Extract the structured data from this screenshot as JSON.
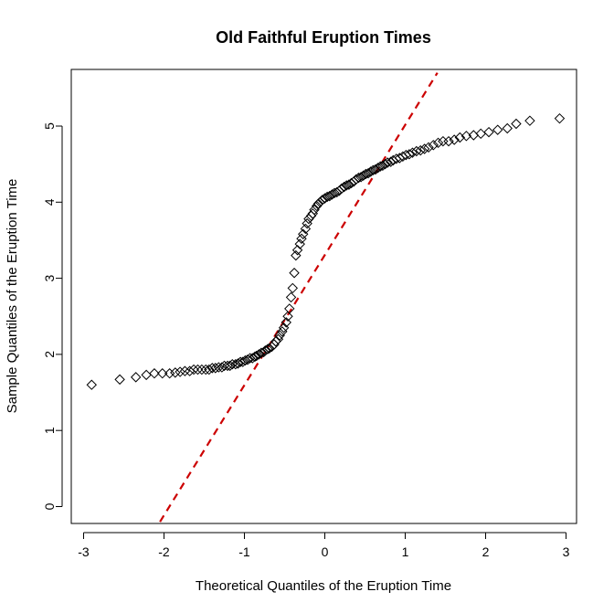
{
  "chart_data": {
    "type": "scatter",
    "title": "Old Faithful Eruption Times",
    "xlabel": "Theoretical Quantiles of the Eruption Time",
    "ylabel": "Sample Quantiles of the Eruption Time",
    "xlim": [
      -3,
      3
    ],
    "ylim": [
      0,
      5.5
    ],
    "xticks": [
      "-3",
      "-2",
      "-1",
      "0",
      "1",
      "2",
      "3"
    ],
    "yticks": [
      "0",
      "1",
      "2",
      "3",
      "4",
      "5"
    ],
    "grid": false,
    "legend": "none",
    "marker": "diamond",
    "marker_color": "#000000",
    "line_color": "#cc0000",
    "line_style": "dashed",
    "reference_line": {
      "points": [
        [
          -2.05,
          -0.2
        ],
        [
          1.4,
          5.7
        ]
      ]
    },
    "series": [
      {
        "points": [
          [
            -2.9,
            1.6
          ],
          [
            -2.55,
            1.67
          ],
          [
            -2.35,
            1.7
          ],
          [
            -2.22,
            1.73
          ],
          [
            -2.12,
            1.75
          ],
          [
            -2.02,
            1.75
          ],
          [
            -1.93,
            1.75
          ],
          [
            -1.86,
            1.76
          ],
          [
            -1.8,
            1.77
          ],
          [
            -1.74,
            1.78
          ],
          [
            -1.68,
            1.78
          ],
          [
            -1.63,
            1.8
          ],
          [
            -1.58,
            1.8
          ],
          [
            -1.53,
            1.8
          ],
          [
            -1.48,
            1.8
          ],
          [
            -1.44,
            1.8
          ],
          [
            -1.4,
            1.82
          ],
          [
            -1.36,
            1.82
          ],
          [
            -1.32,
            1.83
          ],
          [
            -1.28,
            1.83
          ],
          [
            -1.25,
            1.85
          ],
          [
            -1.21,
            1.85
          ],
          [
            -1.18,
            1.85
          ],
          [
            -1.15,
            1.87
          ],
          [
            -1.11,
            1.87
          ],
          [
            -1.08,
            1.88
          ],
          [
            -1.05,
            1.9
          ],
          [
            -1.02,
            1.9
          ],
          [
            -0.99,
            1.92
          ],
          [
            -0.96,
            1.93
          ],
          [
            -0.93,
            1.95
          ],
          [
            -0.9,
            1.95
          ],
          [
            -0.87,
            1.97
          ],
          [
            -0.85,
            1.98
          ],
          [
            -0.82,
            2.0
          ],
          [
            -0.79,
            2.02
          ],
          [
            -0.76,
            2.03
          ],
          [
            -0.74,
            2.05
          ],
          [
            -0.71,
            2.07
          ],
          [
            -0.69,
            2.08
          ],
          [
            -0.66,
            2.1
          ],
          [
            -0.63,
            2.13
          ],
          [
            -0.61,
            2.17
          ],
          [
            -0.58,
            2.2
          ],
          [
            -0.56,
            2.25
          ],
          [
            -0.53,
            2.3
          ],
          [
            -0.51,
            2.35
          ],
          [
            -0.48,
            2.42
          ],
          [
            -0.46,
            2.5
          ],
          [
            -0.44,
            2.6
          ],
          [
            -0.42,
            2.75
          ],
          [
            -0.4,
            2.87
          ],
          [
            -0.38,
            3.07
          ],
          [
            -0.36,
            3.3
          ],
          [
            -0.34,
            3.37
          ],
          [
            -0.31,
            3.45
          ],
          [
            -0.29,
            3.52
          ],
          [
            -0.27,
            3.58
          ],
          [
            -0.24,
            3.65
          ],
          [
            -0.22,
            3.72
          ],
          [
            -0.2,
            3.78
          ],
          [
            -0.17,
            3.82
          ],
          [
            -0.15,
            3.85
          ],
          [
            -0.13,
            3.9
          ],
          [
            -0.1,
            3.95
          ],
          [
            -0.08,
            3.98
          ],
          [
            -0.06,
            4.0
          ],
          [
            -0.03,
            4.03
          ],
          [
            0.0,
            4.05
          ],
          [
            0.03,
            4.07
          ],
          [
            0.06,
            4.08
          ],
          [
            0.09,
            4.1
          ],
          [
            0.12,
            4.12
          ],
          [
            0.15,
            4.13
          ],
          [
            0.18,
            4.15
          ],
          [
            0.21,
            4.18
          ],
          [
            0.24,
            4.2
          ],
          [
            0.27,
            4.22
          ],
          [
            0.3,
            4.23
          ],
          [
            0.33,
            4.25
          ],
          [
            0.36,
            4.27
          ],
          [
            0.39,
            4.3
          ],
          [
            0.42,
            4.32
          ],
          [
            0.45,
            4.33
          ],
          [
            0.48,
            4.35
          ],
          [
            0.51,
            4.37
          ],
          [
            0.54,
            4.38
          ],
          [
            0.57,
            4.4
          ],
          [
            0.6,
            4.42
          ],
          [
            0.63,
            4.43
          ],
          [
            0.66,
            4.45
          ],
          [
            0.69,
            4.47
          ],
          [
            0.72,
            4.48
          ],
          [
            0.75,
            4.5
          ],
          [
            0.78,
            4.52
          ],
          [
            0.82,
            4.53
          ],
          [
            0.85,
            4.55
          ],
          [
            0.89,
            4.57
          ],
          [
            0.93,
            4.58
          ],
          [
            0.97,
            4.6
          ],
          [
            1.01,
            4.62
          ],
          [
            1.05,
            4.63
          ],
          [
            1.09,
            4.65
          ],
          [
            1.14,
            4.67
          ],
          [
            1.19,
            4.68
          ],
          [
            1.24,
            4.7
          ],
          [
            1.29,
            4.72
          ],
          [
            1.35,
            4.75
          ],
          [
            1.41,
            4.78
          ],
          [
            1.47,
            4.8
          ],
          [
            1.54,
            4.8
          ],
          [
            1.61,
            4.82
          ],
          [
            1.68,
            4.85
          ],
          [
            1.76,
            4.87
          ],
          [
            1.85,
            4.88
          ],
          [
            1.94,
            4.9
          ],
          [
            2.04,
            4.92
          ],
          [
            2.15,
            4.95
          ],
          [
            2.27,
            4.97
          ],
          [
            2.38,
            5.03
          ],
          [
            2.55,
            5.07
          ],
          [
            2.92,
            5.1
          ]
        ]
      }
    ]
  }
}
